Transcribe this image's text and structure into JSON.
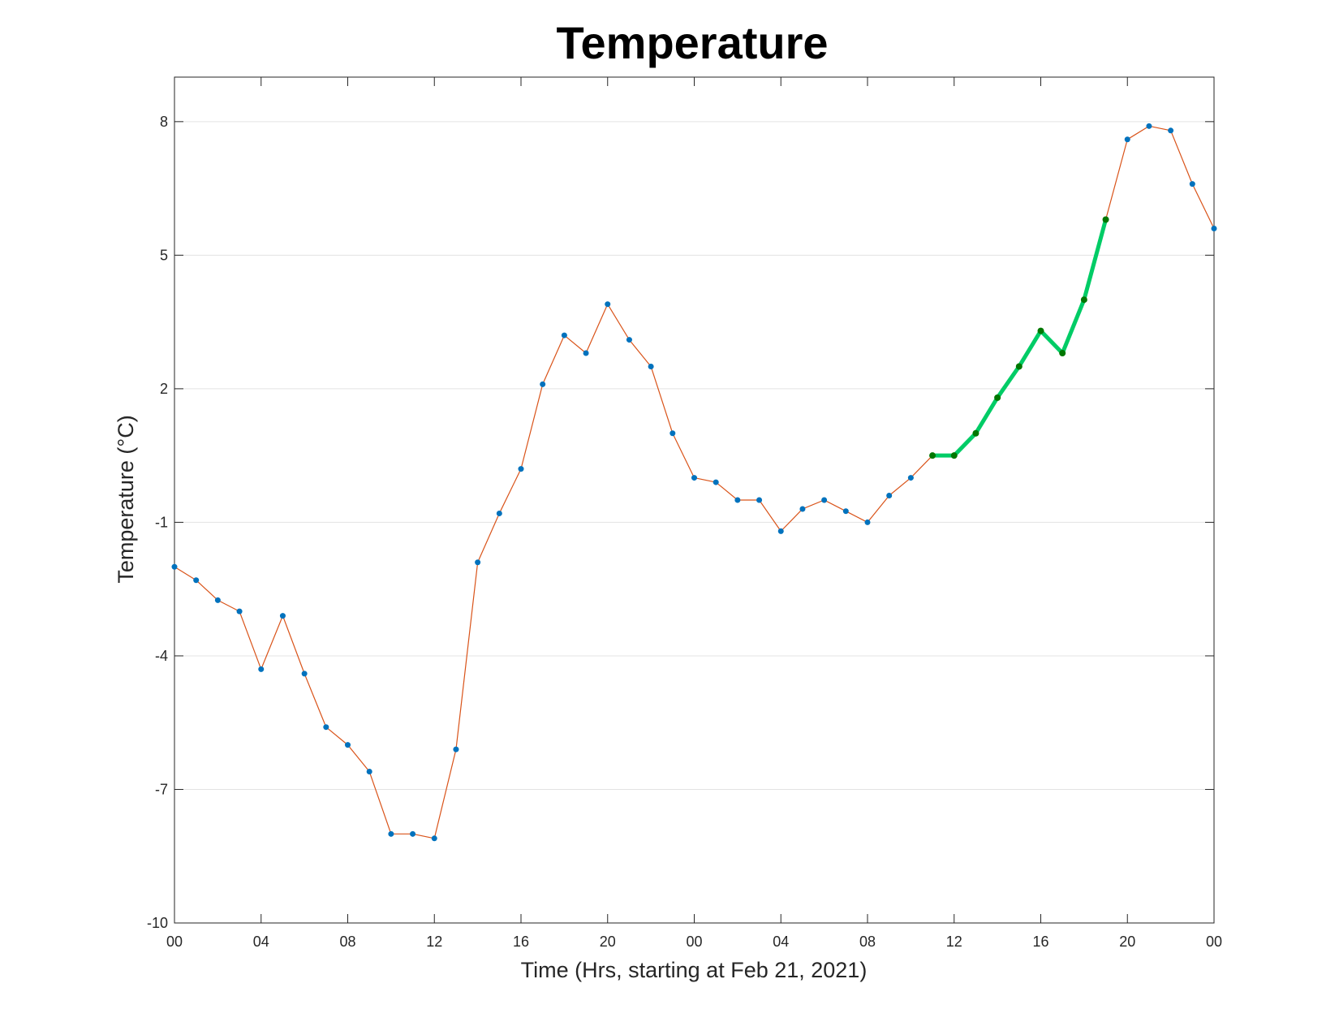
{
  "chart_data": {
    "type": "line",
    "title": "Temperature",
    "xlabel": "Time (Hrs, starting at Feb 21, 2021)",
    "ylabel": "Temperature (°C)",
    "x_unit": "hours",
    "xlim": [
      0,
      48
    ],
    "ylim": [
      -10,
      9
    ],
    "yticks": [
      -10,
      -7,
      -4,
      -1,
      2,
      5,
      8
    ],
    "xticks": [
      {
        "x": 0,
        "label": "00"
      },
      {
        "x": 4,
        "label": "04"
      },
      {
        "x": 8,
        "label": "08"
      },
      {
        "x": 12,
        "label": "12"
      },
      {
        "x": 16,
        "label": "16"
      },
      {
        "x": 20,
        "label": "20"
      },
      {
        "x": 24,
        "label": "00"
      },
      {
        "x": 28,
        "label": "04"
      },
      {
        "x": 32,
        "label": "08"
      },
      {
        "x": 36,
        "label": "12"
      },
      {
        "x": 40,
        "label": "16"
      },
      {
        "x": 44,
        "label": "20"
      },
      {
        "x": 48,
        "label": "00"
      }
    ],
    "grid": "horizontal",
    "series": [
      {
        "color": "#d95319",
        "marker_color": "#0072bd",
        "x": [
          0,
          1,
          2,
          3,
          4,
          5,
          6,
          7,
          8,
          9,
          10,
          11,
          12,
          13,
          14,
          15,
          16,
          17,
          18,
          19,
          20,
          21,
          22,
          23,
          24,
          25,
          26,
          27,
          28,
          29,
          30,
          31,
          32,
          33,
          34,
          35,
          36,
          37,
          38,
          39,
          40,
          41,
          42,
          43,
          44,
          45,
          46,
          47,
          48
        ],
        "values": [
          -2.0,
          -2.3,
          -2.75,
          -3.0,
          -4.3,
          -3.1,
          -4.4,
          -5.6,
          -6.0,
          -6.6,
          -8.0,
          -8.0,
          -8.1,
          -6.1,
          -1.9,
          -0.8,
          0.2,
          2.1,
          3.2,
          2.8,
          3.9,
          3.1,
          2.5,
          1.0,
          0.0,
          -0.1,
          -0.5,
          -0.5,
          -1.2,
          -0.7,
          -0.5,
          -0.75,
          -1.0,
          -0.4,
          0.0,
          0.5,
          0.5,
          1.0,
          1.8,
          2.5,
          3.3,
          2.8,
          4.0,
          5.8,
          7.6,
          7.9,
          7.8,
          6.6,
          5.6
        ]
      },
      {
        "color": "#00cc66",
        "marker_color": "#007700",
        "x": [
          35,
          36,
          37,
          38,
          39,
          40,
          41,
          42,
          43
        ],
        "values": [
          0.5,
          0.5,
          1.0,
          1.8,
          2.5,
          3.3,
          2.8,
          4.0,
          5.8
        ]
      }
    ]
  }
}
